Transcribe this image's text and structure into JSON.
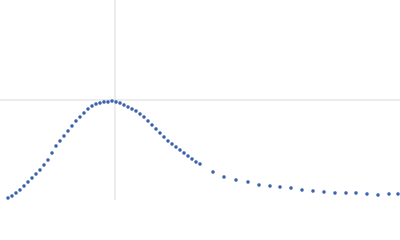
{
  "chart_data": {
    "type": "scatter",
    "color": "#3a62ad",
    "x": [
      8,
      12,
      16,
      20,
      24,
      28,
      32,
      36,
      40,
      44,
      48,
      52,
      56,
      60,
      64,
      68,
      72,
      76,
      80,
      84,
      88,
      92,
      96,
      100,
      104,
      108,
      112,
      116,
      120,
      124,
      128,
      132,
      136,
      140,
      144,
      148,
      152,
      156,
      160,
      164,
      168,
      172,
      176,
      180,
      184,
      188,
      192,
      196,
      200,
      213,
      224,
      236,
      248,
      259,
      270,
      280,
      291,
      302,
      313,
      324,
      335,
      346,
      356,
      367,
      378,
      389,
      398
    ],
    "values": [
      2,
      4,
      7,
      10,
      14,
      18,
      22,
      26,
      30,
      35,
      40,
      47,
      54,
      59,
      64,
      69,
      74,
      79,
      83,
      87,
      91,
      94,
      96,
      97,
      98,
      98,
      99,
      98,
      97,
      95,
      93,
      91,
      89,
      86,
      83,
      79,
      75,
      71,
      67,
      63,
      59,
      56,
      53,
      50,
      47,
      44,
      41,
      38,
      36,
      28,
      23,
      20,
      18,
      15,
      14,
      13,
      12,
      10,
      9,
      8,
      7,
      7,
      7,
      6,
      5,
      6,
      6
    ],
    "xlim": [
      0,
      400
    ],
    "ylim": [
      0,
      200
    ],
    "xticks": [
      115
    ],
    "yticks": [
      100
    ],
    "grid": true
  }
}
